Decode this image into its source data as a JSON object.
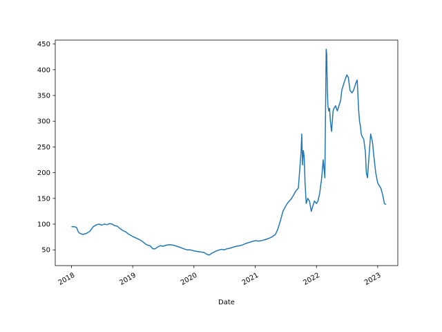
{
  "chart_data": {
    "type": "line",
    "title": "",
    "xlabel": "Date",
    "ylabel": "",
    "xlim": [
      "2017-09-26",
      "2023-05-01"
    ],
    "ylim": [
      19.4,
      457.6
    ],
    "x_ticks": [
      "2018",
      "2019",
      "2020",
      "2021",
      "2022",
      "2023"
    ],
    "y_ticks": [
      50,
      100,
      150,
      200,
      250,
      300,
      350,
      400,
      450
    ],
    "grid": false,
    "legend": "none",
    "colors": {
      "line": "#1f77b4",
      "axes": "#000000",
      "background": "#ffffff"
    },
    "series": [
      {
        "x": [
          "2018-01-01",
          "2018-01-20",
          "2018-02-01",
          "2018-02-10",
          "2018-02-20",
          "2018-03-10",
          "2018-04-01",
          "2018-04-20",
          "2018-05-10",
          "2018-06-01",
          "2018-06-15",
          "2018-07-01",
          "2018-07-15",
          "2018-08-01",
          "2018-08-15",
          "2018-09-01",
          "2018-09-15",
          "2018-10-01",
          "2018-10-15",
          "2018-11-01",
          "2018-11-20",
          "2018-12-10",
          "2019-01-01",
          "2019-01-20",
          "2019-02-10",
          "2019-03-01",
          "2019-03-20",
          "2019-04-01",
          "2019-04-15",
          "2019-05-01",
          "2019-05-15",
          "2019-06-01",
          "2019-06-15",
          "2019-07-01",
          "2019-07-20",
          "2019-08-10",
          "2019-09-01",
          "2019-09-20",
          "2019-10-10",
          "2019-11-01",
          "2019-11-20",
          "2019-12-10",
          "2020-01-01",
          "2020-01-20",
          "2020-02-10",
          "2020-03-01",
          "2020-03-20",
          "2020-04-01",
          "2020-04-15",
          "2020-05-01",
          "2020-05-15",
          "2020-06-01",
          "2020-06-15",
          "2020-07-01",
          "2020-07-15",
          "2020-08-01",
          "2020-08-20",
          "2020-09-10",
          "2020-10-01",
          "2020-10-20",
          "2020-11-10",
          "2020-12-01",
          "2020-12-20",
          "2021-01-05",
          "2021-01-20",
          "2021-02-10",
          "2021-03-01",
          "2021-03-20",
          "2021-04-10",
          "2021-05-01",
          "2021-05-15",
          "2021-06-01",
          "2021-06-15",
          "2021-07-01",
          "2021-07-15",
          "2021-08-01",
          "2021-08-15",
          "2021-09-01",
          "2021-09-15",
          "2021-10-01",
          "2021-10-05",
          "2021-10-10",
          "2021-10-15",
          "2021-10-20",
          "2021-10-25",
          "2021-11-01",
          "2021-11-10",
          "2021-11-20",
          "2021-12-01",
          "2021-12-10",
          "2021-12-20",
          "2022-01-01",
          "2022-01-10",
          "2022-01-20",
          "2022-02-01",
          "2022-02-10",
          "2022-02-20",
          "2022-02-28",
          "2022-03-03",
          "2022-03-07",
          "2022-03-10",
          "2022-03-15",
          "2022-03-20",
          "2022-03-25",
          "2022-04-01",
          "2022-04-10",
          "2022-04-15",
          "2022-04-25",
          "2022-05-05",
          "2022-05-15",
          "2022-05-25",
          "2022-06-01",
          "2022-06-10",
          "2022-06-20",
          "2022-07-01",
          "2022-07-10",
          "2022-07-20",
          "2022-08-01",
          "2022-08-10",
          "2022-08-20",
          "2022-08-25",
          "2022-09-01",
          "2022-09-10",
          "2022-09-15",
          "2022-09-20",
          "2022-09-25",
          "2022-10-01",
          "2022-10-10",
          "2022-10-20",
          "2022-10-25",
          "2022-11-01",
          "2022-11-10",
          "2022-11-20",
          "2022-12-01",
          "2022-12-10",
          "2022-12-20",
          "2023-01-01",
          "2023-01-10",
          "2023-01-20",
          "2023-02-01",
          "2023-02-10",
          "2023-02-20"
        ],
        "y": [
          95,
          95,
          93,
          85,
          82,
          80,
          82,
          86,
          95,
          99,
          100,
          98,
          100,
          99,
          101,
          100,
          97,
          96,
          92,
          88,
          85,
          80,
          76,
          73,
          70,
          66,
          61,
          59,
          58,
          52,
          52,
          56,
          58,
          57,
          59,
          60,
          59,
          57,
          55,
          52,
          50,
          50,
          48,
          47,
          46,
          45,
          41,
          40,
          43,
          46,
          48,
          50,
          51,
          50,
          52,
          53,
          55,
          57,
          58,
          60,
          63,
          65,
          67,
          68,
          67,
          68,
          70,
          72,
          75,
          80,
          90,
          108,
          125,
          135,
          142,
          148,
          155,
          165,
          170,
          240,
          275,
          215,
          243,
          230,
          180,
          140,
          150,
          145,
          125,
          135,
          145,
          140,
          145,
          160,
          190,
          225,
          190,
          440,
          430,
          360,
          330,
          320,
          325,
          300,
          280,
          320,
          325,
          330,
          320,
          330,
          340,
          360,
          370,
          380,
          390,
          385,
          360,
          355,
          360,
          370,
          375,
          380,
          320,
          300,
          290,
          275,
          270,
          265,
          240,
          200,
          190,
          230,
          275,
          260,
          230,
          200,
          180,
          175,
          170,
          155,
          140,
          138
        ]
      }
    ]
  }
}
